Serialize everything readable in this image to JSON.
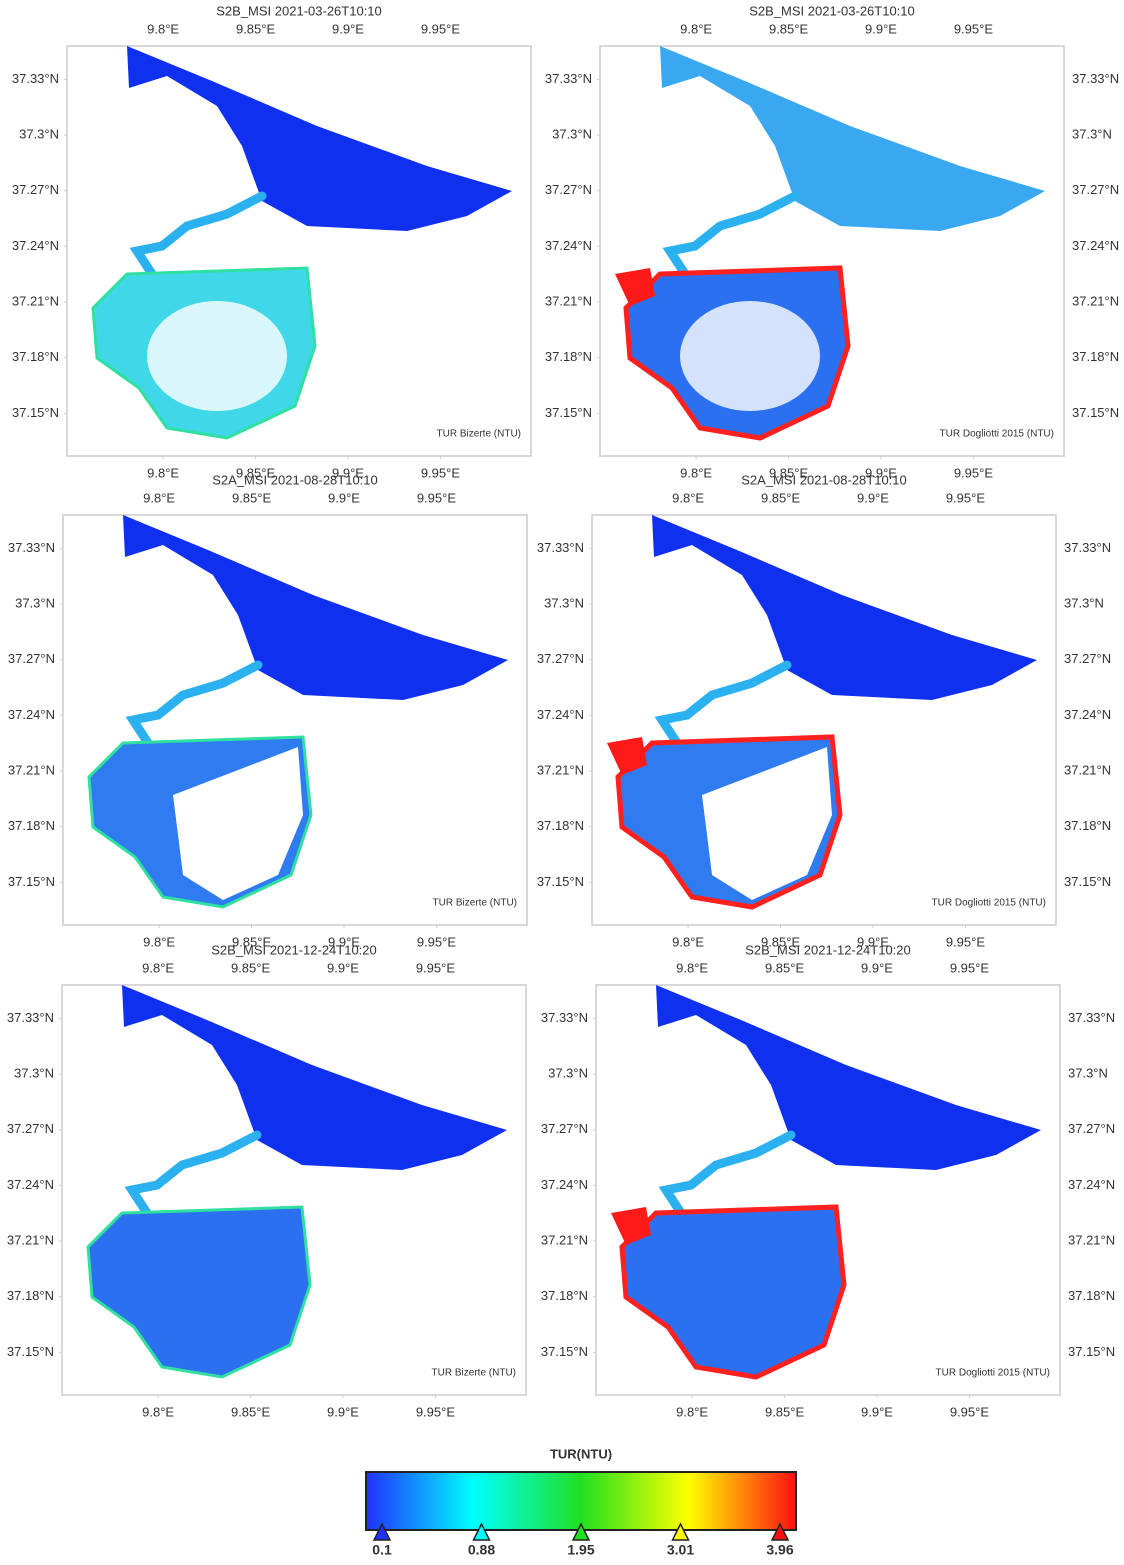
{
  "axes": {
    "xlim": [
      9.748,
      9.999
    ],
    "ylim": [
      37.127,
      37.348
    ],
    "xticks": [
      {
        "value": 9.8,
        "label": "9.8°E"
      },
      {
        "value": 9.85,
        "label": "9.85°E"
      },
      {
        "value": 9.9,
        "label": "9.9°E"
      },
      {
        "value": 9.95,
        "label": "9.95°E"
      }
    ],
    "yticks": [
      {
        "value": 37.33,
        "label": "37.33°N"
      },
      {
        "value": 37.3,
        "label": "37.3°N"
      },
      {
        "value": 37.27,
        "label": "37.27°N"
      },
      {
        "value": 37.24,
        "label": "37.24°N"
      },
      {
        "value": 37.21,
        "label": "37.21°N"
      },
      {
        "value": 37.18,
        "label": "37.18°N"
      },
      {
        "value": 37.15,
        "label": "37.15°N"
      }
    ]
  },
  "panels": [
    {
      "title": "S2B_MSI 2021-03-26T10:10",
      "product": "TUR Bizerte (NTU)"
    },
    {
      "title": "S2B_MSI 2021-03-26T10:10",
      "product": "TUR Dogliotti 2015 (NTU)"
    },
    {
      "title": "S2A_MSI 2021-08-28T10:10",
      "product": "TUR Bizerte (NTU)"
    },
    {
      "title": "S2A_MSI 2021-08-28T10:10",
      "product": "TUR Dogliotti 2015 (NTU)"
    },
    {
      "title": "S2B_MSI 2021-12-24T10:20",
      "product": "TUR Bizerte (NTU)"
    },
    {
      "title": "S2B_MSI 2021-12-24T10:20",
      "product": "TUR Dogliotti 2015 (NTU)"
    }
  ],
  "colorbar": {
    "title": "TUR(NTU)",
    "ticks": [
      0.1,
      0.88,
      1.95,
      3.01,
      3.96
    ],
    "colors": [
      "#2030ff",
      "#00ffff",
      "#20e020",
      "#ffff00",
      "#ff1010"
    ]
  }
}
